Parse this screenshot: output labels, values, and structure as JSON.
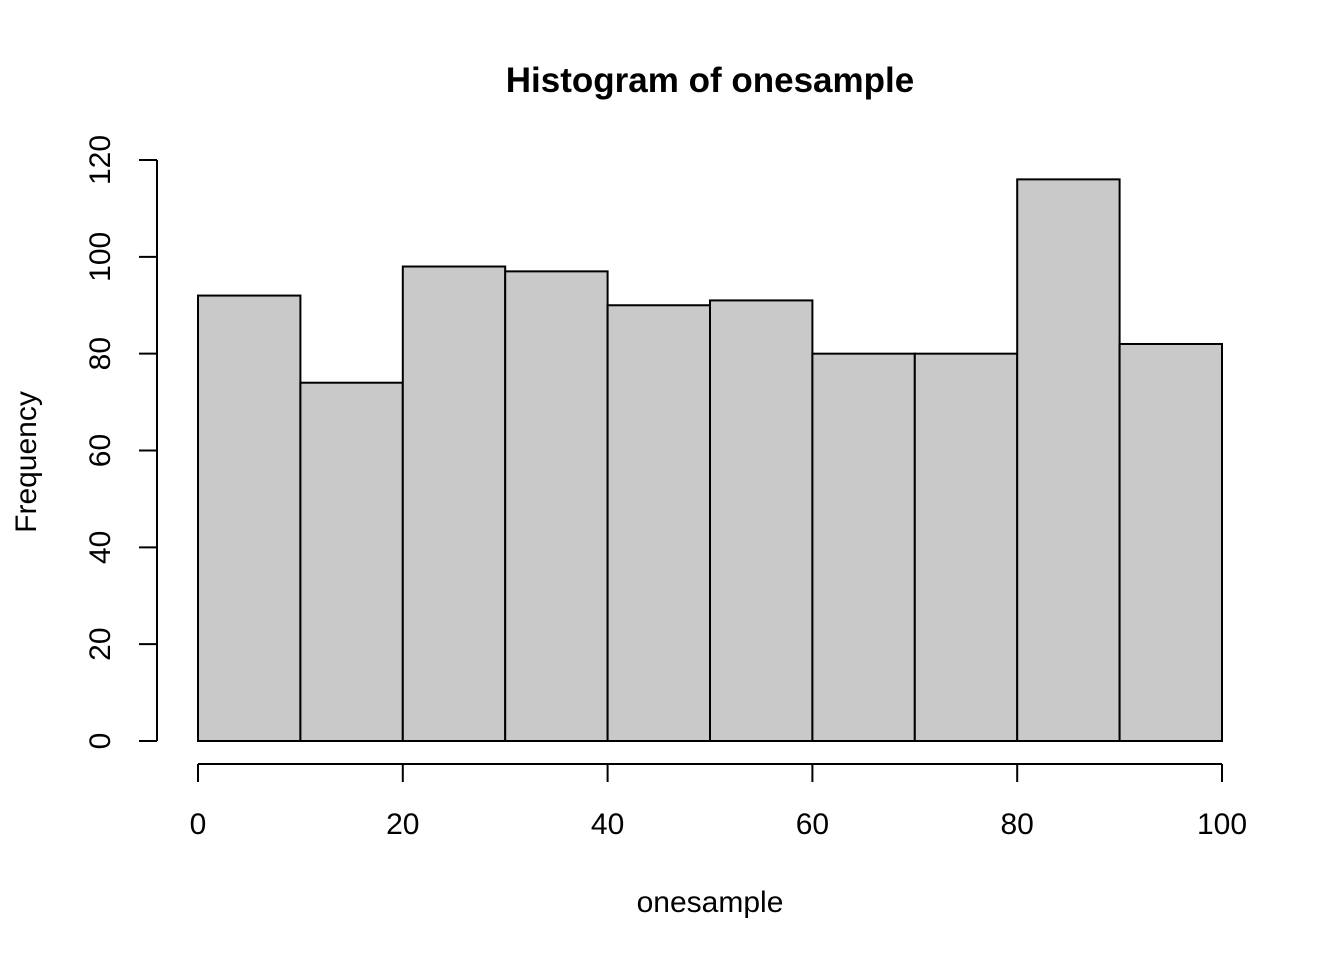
{
  "chart_data": {
    "type": "bar",
    "title": "Histogram of onesample",
    "xlabel": "onesample",
    "ylabel": "Frequency",
    "bins": [
      {
        "from": 0,
        "to": 10,
        "count": 92
      },
      {
        "from": 10,
        "to": 20,
        "count": 74
      },
      {
        "from": 20,
        "to": 30,
        "count": 98
      },
      {
        "from": 30,
        "to": 40,
        "count": 97
      },
      {
        "from": 40,
        "to": 50,
        "count": 90
      },
      {
        "from": 50,
        "to": 60,
        "count": 91
      },
      {
        "from": 60,
        "to": 70,
        "count": 80
      },
      {
        "from": 70,
        "to": 80,
        "count": 80
      },
      {
        "from": 80,
        "to": 90,
        "count": 116
      },
      {
        "from": 90,
        "to": 100,
        "count": 82
      }
    ],
    "xlim": [
      0,
      100
    ],
    "ylim": [
      0,
      120
    ],
    "x_ticks": [
      0,
      20,
      40,
      60,
      80,
      100
    ],
    "y_ticks": [
      0,
      20,
      40,
      60,
      80,
      100,
      120
    ],
    "bar_color": "#c9c9c9",
    "edge_color": "#000000",
    "grid": false,
    "legend": "none"
  }
}
